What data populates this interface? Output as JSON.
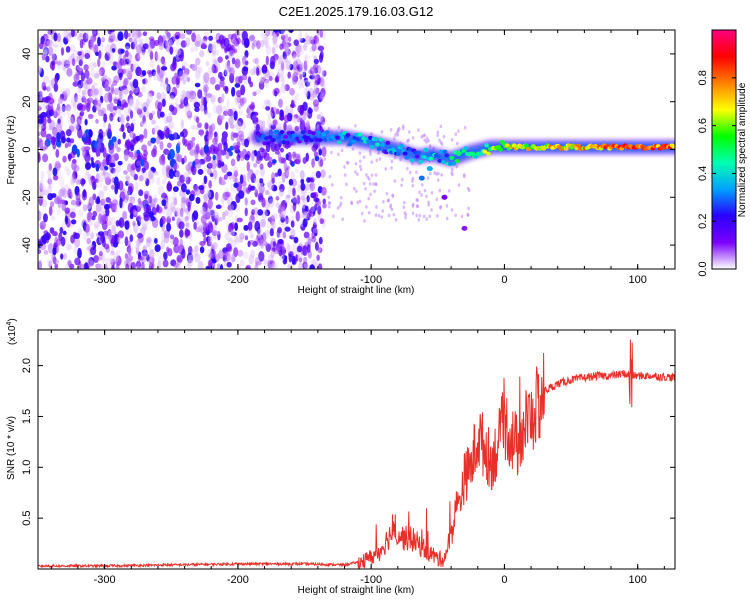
{
  "title": "C2E1.2025.179.16.03.G12",
  "chart_data": [
    {
      "type": "heatmap",
      "xlabel": "Height of straight line (km)",
      "ylabel": "Frequency (Hz)",
      "xlim": [
        -350,
        128
      ],
      "ylim": [
        -50,
        50
      ],
      "xticks": [
        -300,
        -200,
        -100,
        0,
        100
      ],
      "yticks": [
        -40,
        -20,
        0,
        20,
        40
      ],
      "xtick_labels": [
        "-300",
        "-200",
        "-100",
        "0",
        "100"
      ],
      "ytick_labels": [
        "-40",
        "-20",
        "0",
        "20",
        "40"
      ],
      "colorbar": {
        "label": "Normalized spectral amplitude",
        "range": [
          0,
          1
        ],
        "ticks": [
          0,
          0.2,
          0.4,
          0.6,
          0.8
        ],
        "tick_labels": [
          "0.0",
          "0.2",
          "0.4",
          "0.6",
          "0.8"
        ],
        "colors": [
          "#ffffff",
          "#7a00ff",
          "#2a00ff",
          "#00a0ff",
          "#00ffb0",
          "#00ff00",
          "#ffff00",
          "#ff8000",
          "#ff0000",
          "#ff0080"
        ]
      },
      "noise_region_x": [
        -350,
        -135
      ],
      "signal_track": [
        {
          "x": -185,
          "y": 5,
          "amp": 0.3
        },
        {
          "x": -160,
          "y": 5,
          "amp": 0.35
        },
        {
          "x": -140,
          "y": 5,
          "amp": 0.4
        },
        {
          "x": -120,
          "y": 5,
          "amp": 0.45
        },
        {
          "x": -100,
          "y": 3,
          "amp": 0.45
        },
        {
          "x": -80,
          "y": 0,
          "amp": 0.4
        },
        {
          "x": -65,
          "y": -3,
          "amp": 0.4
        },
        {
          "x": -55,
          "y": -2,
          "amp": 0.45
        },
        {
          "x": -40,
          "y": -4,
          "amp": 0.5
        },
        {
          "x": -25,
          "y": -1,
          "amp": 0.6
        },
        {
          "x": -10,
          "y": 1,
          "amp": 0.7
        },
        {
          "x": 5,
          "y": 1,
          "amp": 0.75
        },
        {
          "x": 30,
          "y": 1,
          "amp": 0.8
        },
        {
          "x": 60,
          "y": 1,
          "amp": 0.85
        },
        {
          "x": 90,
          "y": 1,
          "amp": 0.95
        },
        {
          "x": 128,
          "y": 1,
          "amp": 0.9
        }
      ]
    },
    {
      "type": "line",
      "xlabel": "Height of straight line (km)",
      "ylabel": "SNR (10 * v/v)",
      "exponent_label": "(x10",
      "exponent_sup": "4",
      "exponent_close": ")",
      "xlim": [
        -350,
        128
      ],
      "ylim": [
        0,
        2.35
      ],
      "xticks": [
        -300,
        -200,
        -100,
        0,
        100
      ],
      "yticks": [
        0.5,
        1.0,
        1.5,
        2.0
      ],
      "xtick_labels": [
        "-300",
        "-200",
        "-100",
        "0",
        "100"
      ],
      "ytick_labels": [
        "0.5",
        "1.0",
        "1.5",
        "2.0"
      ],
      "color": "#e8302a",
      "series": [
        {
          "x": [
            -350,
            -300,
            -250,
            -200,
            -150,
            -120,
            -105,
            -95,
            -90,
            -85,
            -80,
            -75,
            -70,
            -65,
            -60,
            -55,
            -50,
            -45,
            -40,
            -35,
            -30,
            -25,
            -20,
            -15,
            -10,
            -5,
            0,
            5,
            10,
            15,
            20,
            25,
            30,
            40,
            50,
            60,
            70,
            80,
            90,
            95,
            100,
            110,
            128
          ],
          "y": [
            0.03,
            0.03,
            0.04,
            0.05,
            0.05,
            0.04,
            0.08,
            0.15,
            0.25,
            0.35,
            0.35,
            0.3,
            0.3,
            0.25,
            0.2,
            0.15,
            0.1,
            0.1,
            0.35,
            0.6,
            0.9,
            1.0,
            1.3,
            1.2,
            1.05,
            1.2,
            1.45,
            1.3,
            1.2,
            1.4,
            1.5,
            1.6,
            1.75,
            1.82,
            1.86,
            1.88,
            1.9,
            1.9,
            1.92,
            1.9,
            1.9,
            1.9,
            1.88
          ]
        }
      ]
    }
  ]
}
